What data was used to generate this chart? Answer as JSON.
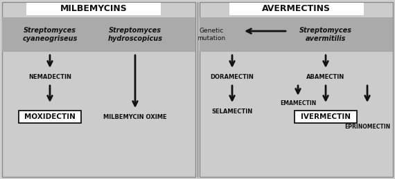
{
  "fig_bg": "#d0d0d0",
  "panel_bg": "#cccccc",
  "header_bg": "#aaaaaa",
  "title_bg": "#ffffff",
  "text_color": "#111111",
  "left_title": "MILBEMYCINS",
  "right_title": "AVERMECTINS",
  "left_panel": {
    "col1_label": "Streptomyces\ncyaneogriseus",
    "col2_label": "Streptomyces\nhydroscopicus",
    "col1_mid": "NEMADECTIN",
    "col1_bot": "MOXIDECTIN",
    "col2_bot": "MILBEMYCIN OXIME"
  },
  "right_panel": {
    "source_label": "Streptomyces\navermitilis",
    "genetic_label": "Genetic\nmutation",
    "col1_mid": "DORAMECTIN",
    "col1_bot": "SELAMECTIN",
    "col2_top": "ABAMECTIN",
    "col2_mid": "EMAMECTIN",
    "col2_bot": "IVERMECTIN",
    "col3_bot": "EPRINOMECTIN"
  }
}
